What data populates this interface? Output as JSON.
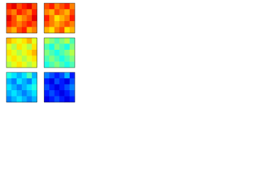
{
  "chart_data": [
    {
      "type": "heatmap",
      "zlim": [
        0,
        1
      ],
      "z": [
        [
          0.85,
          0.9,
          0.8,
          0.85,
          0.9,
          0.8
        ],
        [
          0.8,
          0.75,
          0.85,
          0.8,
          0.75,
          0.85
        ],
        [
          0.9,
          0.8,
          0.7,
          0.75,
          0.8,
          0.9
        ],
        [
          0.85,
          0.8,
          0.75,
          0.8,
          0.85,
          0.8
        ],
        [
          0.75,
          0.7,
          0.8,
          0.85,
          0.7,
          0.75
        ]
      ]
    },
    {
      "type": "heatmap",
      "zlim": [
        0,
        1
      ],
      "z": [
        [
          0.8,
          0.85,
          0.75,
          0.8,
          0.85,
          0.75
        ],
        [
          0.75,
          0.7,
          0.8,
          0.75,
          0.7,
          0.8
        ],
        [
          0.85,
          0.75,
          0.65,
          0.7,
          0.75,
          0.85
        ],
        [
          0.8,
          0.75,
          0.7,
          0.75,
          0.8,
          0.75
        ],
        [
          0.7,
          0.65,
          0.75,
          0.8,
          0.65,
          0.7
        ]
      ]
    },
    {
      "type": "heatmap",
      "zlim": [
        0,
        1
      ],
      "z": [
        [
          0.7,
          0.65,
          0.6,
          0.65,
          0.7,
          0.6
        ],
        [
          0.6,
          0.55,
          0.65,
          0.6,
          0.55,
          0.65
        ],
        [
          0.65,
          0.6,
          0.55,
          0.6,
          0.65,
          0.7
        ],
        [
          0.6,
          0.65,
          0.6,
          0.55,
          0.6,
          0.65
        ],
        [
          0.55,
          0.6,
          0.65,
          0.6,
          0.55,
          0.6
        ]
      ]
    },
    {
      "type": "heatmap",
      "zlim": [
        0,
        1
      ],
      "z": [
        [
          0.55,
          0.5,
          0.45,
          0.5,
          0.55,
          0.45
        ],
        [
          0.45,
          0.4,
          0.5,
          0.45,
          0.4,
          0.5
        ],
        [
          0.5,
          0.45,
          0.4,
          0.45,
          0.5,
          0.55
        ],
        [
          0.45,
          0.5,
          0.45,
          0.4,
          0.45,
          0.5
        ],
        [
          0.4,
          0.45,
          0.5,
          0.45,
          0.4,
          0.45
        ]
      ]
    },
    {
      "type": "heatmap",
      "zlim": [
        0,
        1
      ],
      "z": [
        [
          0.4,
          0.35,
          0.3,
          0.35,
          0.45,
          0.3
        ],
        [
          0.3,
          0.25,
          0.35,
          0.3,
          0.25,
          0.35
        ],
        [
          0.35,
          0.3,
          0.25,
          0.3,
          0.35,
          0.4
        ],
        [
          0.3,
          0.35,
          0.3,
          0.25,
          0.3,
          0.35
        ],
        [
          0.25,
          0.3,
          0.35,
          0.3,
          0.25,
          0.3
        ]
      ]
    },
    {
      "type": "heatmap",
      "zlim": [
        0,
        1
      ],
      "z": [
        [
          0.25,
          0.2,
          0.15,
          0.2,
          0.3,
          0.15
        ],
        [
          0.15,
          0.1,
          0.2,
          0.15,
          0.1,
          0.2
        ],
        [
          0.2,
          0.15,
          0.1,
          0.15,
          0.2,
          0.25
        ],
        [
          0.15,
          0.2,
          0.15,
          0.1,
          0.15,
          0.2
        ],
        [
          0.1,
          0.15,
          0.2,
          0.15,
          0.1,
          0.15
        ]
      ]
    }
  ]
}
